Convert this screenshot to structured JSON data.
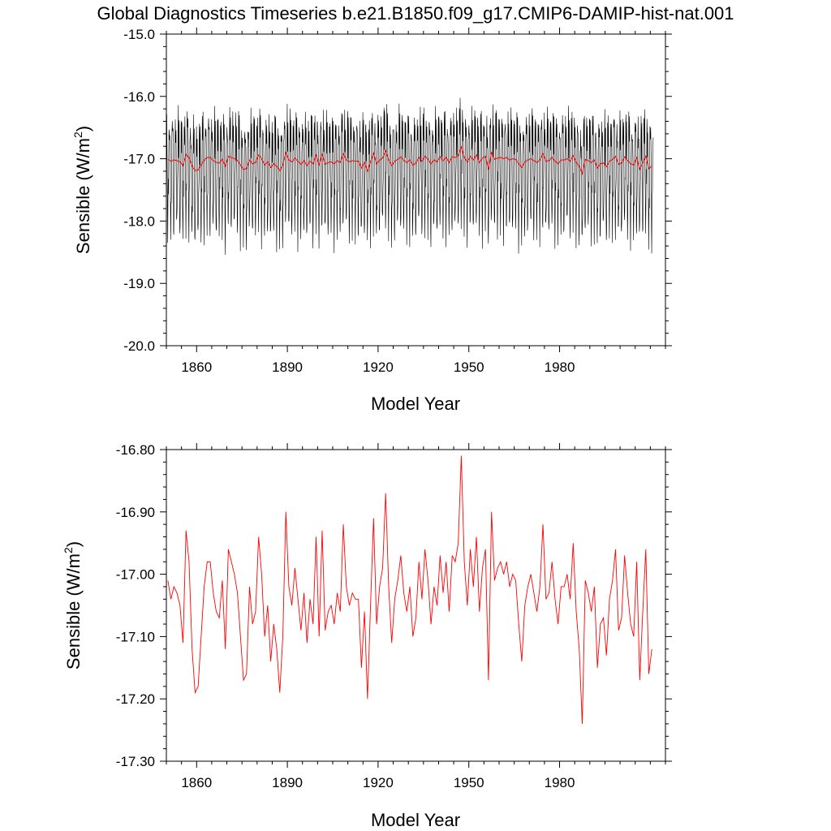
{
  "title": "Global Diagnostics Timeseries b.e21.B1850.f09_g17.CMIP6-DAMIP-hist-nat.001",
  "colors": {
    "monthly": "#000000",
    "annual": "#ff0000",
    "axis": "#000000",
    "background": "#ffffff"
  },
  "chart_data": [
    {
      "type": "line",
      "xlabel": "Model Year",
      "ylabel_main": "Sensible (W/m",
      "ylabel_sup": "2",
      "ylabel_close": ")",
      "xlim": [
        1850,
        2015
      ],
      "ylim": [
        -20.0,
        -15.0
      ],
      "xticks": [
        1860,
        1890,
        1920,
        1950,
        1980
      ],
      "xtick_labels": [
        "1860",
        "1890",
        "1920",
        "1950",
        "1980"
      ],
      "yticks": [
        -15.0,
        -16.0,
        -17.0,
        -18.0,
        -19.0,
        -20.0
      ],
      "ytick_labels": [
        "-15.0",
        "-16.0",
        "-17.0",
        "-18.0",
        "-19.0",
        "-20.0"
      ],
      "grid": false,
      "series": [
        {
          "role": "monthly",
          "color": "#000000",
          "description": "monthly seasonal cycle, Jan-Dec pattern repeated each year",
          "seasonal_cycle": [
            -16.75,
            -16.5,
            -16.6,
            -17.2,
            -17.9,
            -18.2,
            -17.8,
            -17.5,
            -17.4,
            -16.9,
            -16.5,
            -16.4
          ],
          "span": [
            1850,
            2015
          ]
        },
        {
          "role": "annual",
          "color": "#ff0000",
          "ref": "annual_means"
        }
      ]
    },
    {
      "type": "line",
      "xlabel": "Model Year",
      "ylabel_main": "Sensible (W/m",
      "ylabel_sup": "2",
      "ylabel_close": ")",
      "xlim": [
        1850,
        2015
      ],
      "ylim": [
        -17.3,
        -16.8
      ],
      "xticks": [
        1860,
        1890,
        1920,
        1950,
        1980
      ],
      "xtick_labels": [
        "1860",
        "1890",
        "1920",
        "1950",
        "1980"
      ],
      "yticks": [
        -16.8,
        -16.9,
        -17.0,
        -17.1,
        -17.2,
        -17.3
      ],
      "ytick_labels": [
        "-16.80",
        "-16.90",
        "-17.00",
        "-17.10",
        "-17.20",
        "-17.30"
      ],
      "grid": false,
      "series": [
        {
          "role": "annual",
          "color": "#ff0000",
          "ref": "annual_means"
        }
      ]
    }
  ],
  "annual_means": {
    "x_start": 1850,
    "values": [
      -17.01,
      -17.04,
      -17.02,
      -17.03,
      -17.05,
      -17.11,
      -16.93,
      -16.98,
      -17.12,
      -17.19,
      -17.18,
      -17.1,
      -17.02,
      -16.98,
      -16.98,
      -17.03,
      -17.06,
      -17.07,
      -17.01,
      -17.12,
      -16.96,
      -16.98,
      -17.0,
      -17.03,
      -17.1,
      -17.17,
      -17.16,
      -17.02,
      -17.08,
      -17.06,
      -16.94,
      -17.0,
      -17.1,
      -17.05,
      -17.14,
      -17.08,
      -17.12,
      -17.19,
      -17.1,
      -16.9,
      -17.02,
      -17.05,
      -16.99,
      -17.04,
      -17.09,
      -17.03,
      -17.11,
      -17.04,
      -17.08,
      -16.94,
      -17.1,
      -16.93,
      -17.09,
      -17.06,
      -17.05,
      -17.08,
      -17.03,
      -17.06,
      -16.92,
      -17.02,
      -17.05,
      -17.03,
      -17.04,
      -17.04,
      -17.15,
      -17.06,
      -17.2,
      -17.05,
      -16.91,
      -17.08,
      -17.02,
      -16.99,
      -16.87,
      -17.02,
      -17.11,
      -17.04,
      -17.01,
      -16.97,
      -17.03,
      -17.06,
      -17.02,
      -17.1,
      -17.07,
      -16.98,
      -17.04,
      -16.96,
      -17.01,
      -17.08,
      -17.02,
      -17.05,
      -16.97,
      -17.03,
      -16.98,
      -17.06,
      -16.97,
      -16.98,
      -16.95,
      -16.81,
      -16.98,
      -17.05,
      -16.96,
      -17.02,
      -16.94,
      -17.06,
      -16.99,
      -16.96,
      -17.17,
      -16.9,
      -17.01,
      -16.99,
      -16.98,
      -17.0,
      -16.98,
      -17.02,
      -17.0,
      -17.01,
      -17.08,
      -17.14,
      -17.05,
      -17.02,
      -17.0,
      -17.03,
      -17.06,
      -17.02,
      -16.92,
      -17.04,
      -17.03,
      -16.98,
      -17.04,
      -17.08,
      -17.02,
      -17.02,
      -17.0,
      -17.04,
      -16.95,
      -17.06,
      -17.12,
      -17.24,
      -17.01,
      -17.03,
      -17.06,
      -17.02,
      -17.15,
      -17.08,
      -17.07,
      -17.13,
      -17.04,
      -17.01,
      -16.96,
      -17.09,
      -17.07,
      -16.97,
      -17.03,
      -17.08,
      -17.1,
      -16.98,
      -17.17,
      -17.06,
      -16.96,
      -17.16,
      -17.12
    ]
  }
}
